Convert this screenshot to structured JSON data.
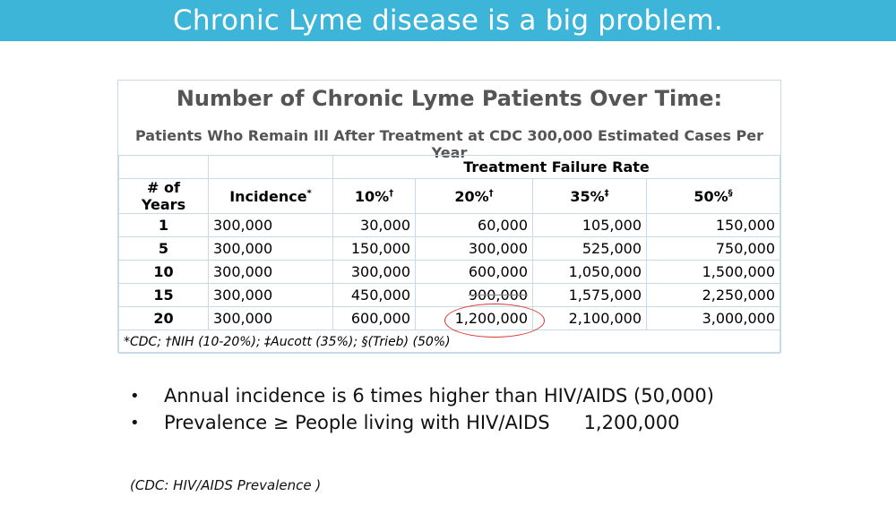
{
  "slide": {
    "title": "Chronic Lyme disease is a big problem."
  },
  "table": {
    "title": "Number of Chronic Lyme Patients Over Time:",
    "subtitle": "Patients Who Remain Ill After Treatment at CDC 300,000 Estimated Cases Per Year",
    "group_header": "Treatment Failure Rate",
    "headers": {
      "years": "# of Years",
      "incidence": "Incidence",
      "incidence_mark": "*",
      "r10": "10%",
      "r10_mark": "†",
      "r20": "20%",
      "r20_mark": "†",
      "r35": "35%",
      "r35_mark": "‡",
      "r50": "50%",
      "r50_mark": "§"
    },
    "rows": [
      {
        "years": "1",
        "incidence": "300,000",
        "r10": "30,000",
        "r20": "60,000",
        "r35": "105,000",
        "r50": "150,000"
      },
      {
        "years": "5",
        "incidence": "300,000",
        "r10": "150,000",
        "r20": "300,000",
        "r35": "525,000",
        "r50": "750,000"
      },
      {
        "years": "10",
        "incidence": "300,000",
        "r10": "300,000",
        "r20": "600,000",
        "r35": "1,050,000",
        "r50": "1,500,000"
      },
      {
        "years": "15",
        "incidence": "300,000",
        "r10": "450,000",
        "r20": "900,000",
        "r35": "1,575,000",
        "r50": "2,250,000"
      },
      {
        "years": "20",
        "incidence": "300,000",
        "r10": "600,000",
        "r20": "1,200,000",
        "r35": "2,100,000",
        "r50": "3,000,000"
      }
    ],
    "footnote": "*CDC; †NIH (10-20%); ‡Aucott (35%); §(Trieb) (50%)",
    "highlight_color": "#d33333"
  },
  "bullets": [
    {
      "text": "Annual incidence is 6 times higher than HIV/AIDS (50,000)",
      "amount": ""
    },
    {
      "text": "Prevalence ≥ People living with HIV/AIDS",
      "amount": "1,200,000"
    }
  ],
  "bullet_symbol": "•",
  "source": "(CDC: HIV/AIDS Prevalence )",
  "colors": {
    "title_bar": "#3db5d9",
    "table_border": "#c5dbe8",
    "heading_text": "#555555"
  }
}
